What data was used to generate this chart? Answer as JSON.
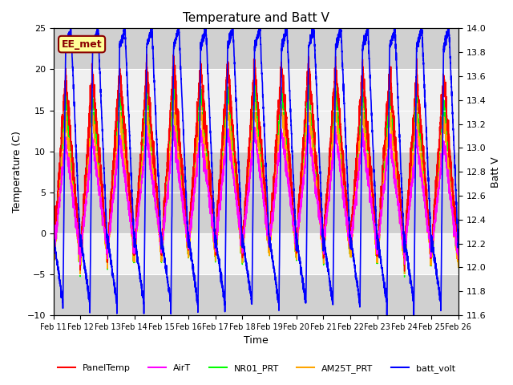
{
  "title": "Temperature and Batt V",
  "xlabel": "Time",
  "ylabel_left": "Temperature (C)",
  "ylabel_right": "Batt V",
  "ylim_left": [
    -10,
    25
  ],
  "ylim_right": [
    11.6,
    14.0
  ],
  "x_tick_labels": [
    "Feb 11",
    "Feb 12",
    "Feb 13",
    "Feb 14",
    "Feb 15",
    "Feb 16",
    "Feb 17",
    "Feb 18",
    "Feb 19",
    "Feb 20",
    "Feb 21",
    "Feb 22",
    "Feb 23",
    "Feb 24",
    "Feb 25",
    "Feb 26"
  ],
  "annotation_text": "EE_met",
  "annotation_fg": "#8B0000",
  "annotation_bg": "#ffff99",
  "background_color": "#ffffff",
  "band_colors": [
    "#d0d0d0",
    "#f0f0f0",
    "#d0d0d0",
    "#f0f0f0",
    "#d0d0d0"
  ],
  "band_edges": [
    -10,
    -5,
    0,
    10,
    20,
    25
  ],
  "series": {
    "PanelTemp": {
      "color": "#ff0000",
      "lw": 1.0
    },
    "AirT": {
      "color": "#ff00ff",
      "lw": 1.0
    },
    "NR01_PRT": {
      "color": "#00ff00",
      "lw": 1.0
    },
    "AM25T_PRT": {
      "color": "#ffa500",
      "lw": 1.0
    },
    "batt_volt": {
      "color": "#0000ff",
      "lw": 1.2
    }
  },
  "n_days": 15,
  "pts_per_day": 288
}
